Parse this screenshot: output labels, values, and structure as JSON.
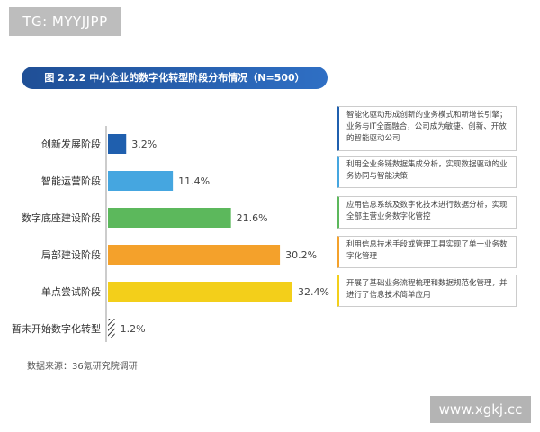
{
  "watermark_top": "TG: MYYJJPP",
  "watermark_bottom": "www.xgkj.cc",
  "title": "图 2.2.2 中小企业的数字化转型阶段分布情况（N=500）",
  "source": "数据来源：36氪研究院调研",
  "colors": {
    "title_bg": "#2a62b0",
    "bars": [
      "#1f5fae",
      "#45a6e0",
      "#5cb85c",
      "#f4a12b",
      "#f3cf1a",
      "#333333"
    ]
  },
  "chart_data": {
    "type": "bar",
    "orientation": "horizontal",
    "title": "图 2.2.2 中小企业的数字化转型阶段分布情况（N=500）",
    "categories": [
      "创新发展阶段",
      "智能运营阶段",
      "数字底座建设阶段",
      "局部建设阶段",
      "单点尝试阶段",
      "暂未开始数字化转型"
    ],
    "values": [
      3.2,
      11.4,
      21.6,
      30.2,
      32.4,
      1.2
    ],
    "value_labels": [
      "3.2%",
      "11.4%",
      "21.6%",
      "30.2%",
      "32.4%",
      "1.2%"
    ],
    "unit": "%",
    "xlim": [
      0,
      32.4
    ],
    "grid": false,
    "legend": "none"
  },
  "notes": [
    {
      "text": "智能化驱动形成创新的业务模式和新增长引擎；业务与IT全面融合，公司成为敏捷、创新、开放的智能驱动公司",
      "color": "#1f5fae"
    },
    {
      "text": "利用全业务链数据集成分析，实现数据驱动的业务协同与智能决策",
      "color": "#45a6e0"
    },
    {
      "text": "应用信息系统及数字化技术进行数据分析，实现全部主营业务数字化管控",
      "color": "#5cb85c"
    },
    {
      "text": "利用信息技术手段或管理工具实现了单一业务数字化管理",
      "color": "#f4a12b"
    },
    {
      "text": "开展了基础业务流程梳理和数据规范化管理，并进行了信息技术简单应用",
      "color": "#f3cf1a"
    }
  ]
}
